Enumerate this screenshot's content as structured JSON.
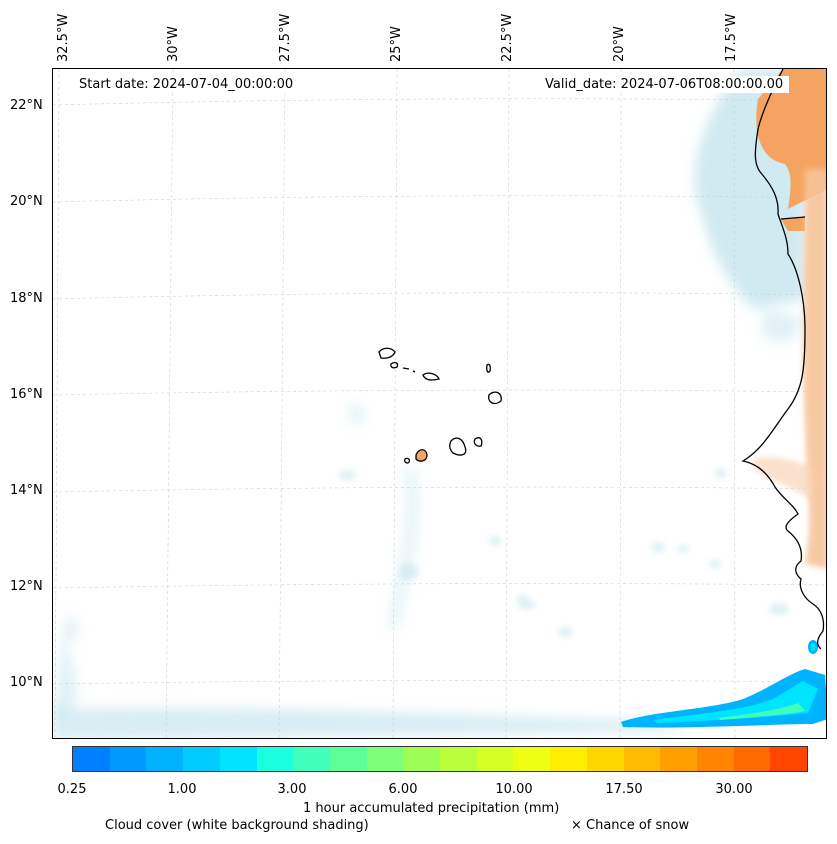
{
  "map": {
    "title_left": "Start date: 2024-07-04_00:00:00",
    "title_right": "Valid_date: 2024-07-06T08:00:00.00",
    "lon_labels": [
      "32.5°W",
      "30°W",
      "27.5°W",
      "25°W",
      "22.5°W",
      "20°W",
      "17.5°W"
    ],
    "lat_labels": [
      "22°N",
      "20°N",
      "18°N",
      "16°N",
      "14°N",
      "12°N",
      "10°N"
    ],
    "colors": {
      "land_hot": "#f4a460",
      "cloud": "#a8d8e4",
      "precip_low": "#0080ff",
      "precip_mid": "#00e5ff",
      "coastline": "#000000"
    }
  },
  "colorbar": {
    "colors": [
      "#0080ff",
      "#0099ff",
      "#00b3ff",
      "#00ccff",
      "#00e5ff",
      "#1affdd",
      "#40ffbb",
      "#5dff99",
      "#7dff77",
      "#9dff55",
      "#bbff3a",
      "#d6ff22",
      "#eeff11",
      "#ffee00",
      "#ffd500",
      "#ffbb00",
      "#ffa000",
      "#ff8500",
      "#ff6a00",
      "#ff4500"
    ],
    "tick_labels": [
      "0.25",
      "1.00",
      "3.00",
      "6.00",
      "10.00",
      "17.50",
      "30.00"
    ],
    "label": "1 hour accumulated precipitation (mm)"
  },
  "legend": {
    "cloud_label": "Cloud cover (white background shading)",
    "snow_label": "× Chance of snow"
  }
}
